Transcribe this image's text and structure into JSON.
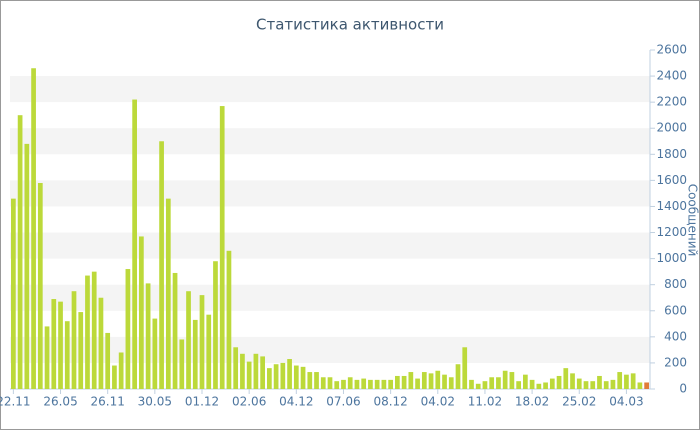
{
  "chart_data": {
    "type": "bar",
    "title": "Статистика активности",
    "y_label": "Сообщений",
    "categories": [
      "22.11",
      null,
      null,
      null,
      null,
      null,
      null,
      "26.05",
      null,
      null,
      null,
      null,
      null,
      null,
      "26.11",
      null,
      null,
      null,
      null,
      null,
      null,
      "30.05",
      null,
      null,
      null,
      null,
      null,
      null,
      "01.12",
      null,
      null,
      null,
      null,
      null,
      null,
      "02.06",
      null,
      null,
      null,
      null,
      null,
      null,
      "04.12",
      null,
      null,
      null,
      null,
      null,
      null,
      "07.06",
      null,
      null,
      null,
      null,
      null,
      null,
      "08.12",
      null,
      null,
      null,
      null,
      null,
      null,
      "04.02",
      null,
      null,
      null,
      null,
      null,
      null,
      "11.02",
      null,
      null,
      null,
      null,
      null,
      null,
      "18.02",
      null,
      null,
      null,
      null,
      null,
      null,
      "25.02",
      null,
      null,
      null,
      null,
      null,
      null,
      "04.03",
      null,
      null,
      null
    ],
    "values": [
      1460,
      2100,
      1880,
      2460,
      1580,
      480,
      690,
      670,
      520,
      750,
      590,
      870,
      900,
      700,
      430,
      180,
      280,
      920,
      2220,
      1170,
      810,
      540,
      1900,
      1460,
      890,
      380,
      750,
      530,
      720,
      570,
      980,
      2170,
      1060,
      320,
      270,
      210,
      270,
      250,
      160,
      190,
      200,
      230,
      180,
      170,
      130,
      130,
      90,
      90,
      60,
      70,
      90,
      70,
      80,
      70,
      70,
      70,
      70,
      100,
      100,
      130,
      80,
      130,
      120,
      140,
      110,
      90,
      190,
      320,
      70,
      40,
      60,
      90,
      90,
      140,
      130,
      60,
      110,
      70,
      40,
      50,
      80,
      100,
      160,
      120,
      80,
      60,
      60,
      100,
      60,
      70,
      130,
      110,
      120,
      50,
      50
    ],
    "color": "#bcd93a",
    "last_color": "#e07b39",
    "ylim": [
      0,
      2600
    ],
    "yticks": [
      0,
      200,
      400,
      600,
      800,
      1000,
      1200,
      1400,
      1600,
      1800,
      2000,
      2200,
      2400,
      2600
    ],
    "grid": "bands",
    "y_axis_side": "right"
  }
}
